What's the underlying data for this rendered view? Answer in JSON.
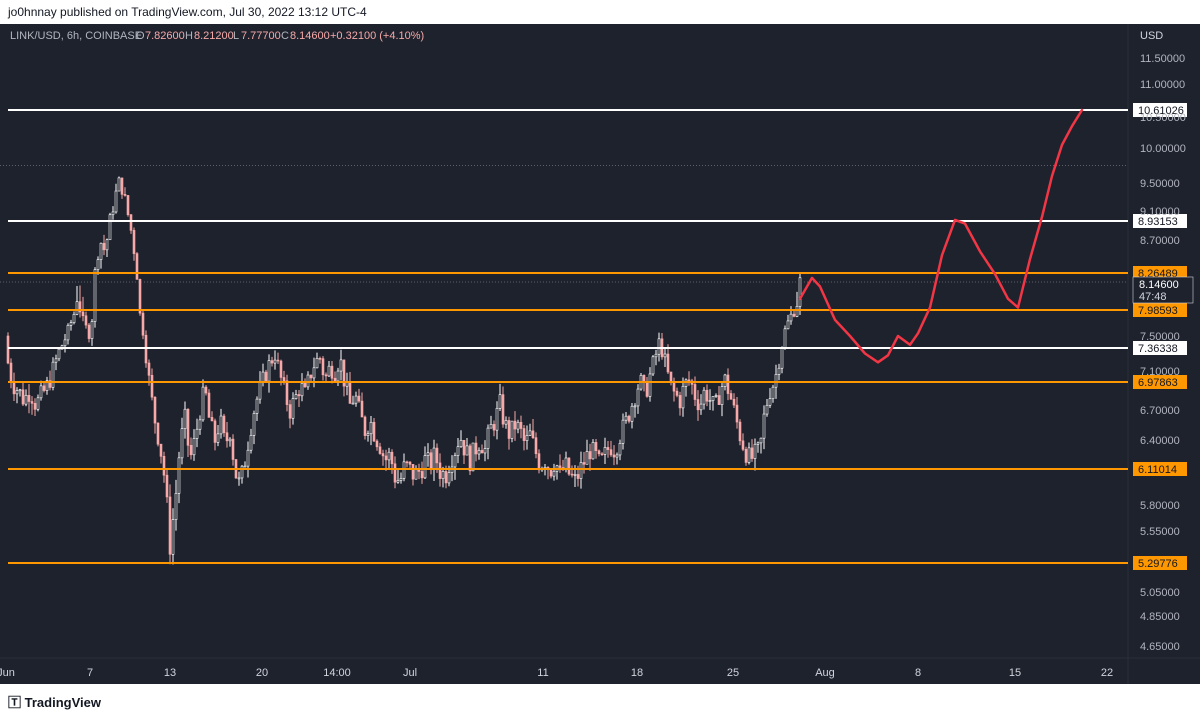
{
  "header": {
    "publisher": "jo0hnnay published on TradingView.com, Jul 30, 2022 13:12 UTC-4"
  },
  "footer": {
    "brand": "TradingView"
  },
  "chart_data": {
    "type": "candlestick",
    "legend": {
      "symbol": "LINK/USD, 6h, COINBASE",
      "o_label": "O",
      "o": "7.82600",
      "h_label": "H",
      "h": "8.21200",
      "l_label": "L",
      "l": "7.77700",
      "c_label": "C",
      "c": "8.14600",
      "change": "+0.32100 (+4.10%)"
    },
    "currency": "USD",
    "y_ticks": [
      "11.50000",
      "11.00000",
      "10.50000",
      "10.00000",
      "9.50000",
      "9.10000",
      "8.70000",
      "7.50000",
      "7.10000",
      "6.70000",
      "6.40000",
      "5.80000",
      "5.55000",
      "5.05000",
      "4.85000",
      "4.65000"
    ],
    "x_ticks": [
      "Jun",
      "7",
      "13",
      "20",
      "14:00",
      "Jul",
      "11",
      "18",
      "25",
      "Aug",
      "8",
      "15",
      "22"
    ],
    "levels": [
      {
        "value": "10.61026",
        "color": "#ffffff"
      },
      {
        "value": "8.93153",
        "color": "#ffffff"
      },
      {
        "value": "8.26489",
        "color": "#ff9800"
      },
      {
        "value": "7.98593",
        "color": "#ff9800"
      },
      {
        "value": "7.36338",
        "color": "#ffffff"
      },
      {
        "value": "6.97863",
        "color": "#ff9800"
      },
      {
        "value": "6.11014",
        "color": "#ff9800"
      },
      {
        "value": "5.29776",
        "color": "#ff9800"
      }
    ],
    "current_price": "8.14600",
    "countdown": "47:48",
    "up_color": "#ffffff",
    "down_color": "#f7a9a8",
    "projection_color": "#f23645",
    "close_points": [
      [
        0,
        7.5
      ],
      [
        6,
        7.3
      ],
      [
        12,
        6.98
      ],
      [
        18,
        6.9
      ],
      [
        24,
        6.8
      ],
      [
        30,
        6.9
      ],
      [
        36,
        6.75
      ],
      [
        42,
        6.85
      ],
      [
        48,
        6.95
      ],
      [
        54,
        7.15
      ],
      [
        60,
        7.35
      ],
      [
        66,
        7.5
      ],
      [
        72,
        7.8
      ],
      [
        78,
        8.15
      ],
      [
        84,
        7.7
      ],
      [
        90,
        7.55
      ],
      [
        96,
        8.4
      ],
      [
        100,
        8.7
      ],
      [
        105,
        8.55
      ],
      [
        110,
        8.95
      ],
      [
        115,
        9.3
      ],
      [
        120,
        9.55
      ],
      [
        125,
        9.25
      ],
      [
        130,
        8.9
      ],
      [
        135,
        8.5
      ],
      [
        140,
        7.9
      ],
      [
        145,
        7.4
      ],
      [
        150,
        6.9
      ],
      [
        155,
        6.6
      ],
      [
        160,
        6.35
      ],
      [
        165,
        6.0
      ],
      [
        170,
        5.45
      ],
      [
        175,
        5.8
      ],
      [
        180,
        6.35
      ],
      [
        185,
        6.6
      ],
      [
        190,
        6.2
      ],
      [
        195,
        6.4
      ],
      [
        200,
        6.7
      ],
      [
        205,
        6.9
      ],
      [
        210,
        6.55
      ],
      [
        215,
        6.4
      ],
      [
        220,
        6.6
      ],
      [
        225,
        6.35
      ],
      [
        230,
        6.5
      ],
      [
        235,
        6.1
      ],
      [
        240,
        5.95
      ],
      [
        245,
        6.2
      ],
      [
        250,
        6.5
      ],
      [
        255,
        6.75
      ],
      [
        260,
        6.9
      ],
      [
        265,
        7.05
      ],
      [
        270,
        7.2
      ],
      [
        275,
        7.3
      ],
      [
        280,
        7.05
      ],
      [
        285,
        6.85
      ],
      [
        290,
        6.7
      ],
      [
        295,
        6.8
      ],
      [
        300,
        6.95
      ],
      [
        305,
        6.85
      ],
      [
        310,
        7.05
      ],
      [
        315,
        7.2
      ],
      [
        320,
        7.25
      ],
      [
        325,
        7.0
      ],
      [
        330,
        7.15
      ],
      [
        335,
        7.1
      ],
      [
        340,
        7.25
      ],
      [
        345,
        6.95
      ],
      [
        350,
        6.75
      ],
      [
        355,
        6.85
      ],
      [
        360,
        6.65
      ],
      [
        365,
        6.5
      ],
      [
        370,
        6.6
      ],
      [
        375,
        6.45
      ],
      [
        380,
        6.35
      ],
      [
        385,
        6.2
      ],
      [
        390,
        6.25
      ],
      [
        395,
        6.05
      ],
      [
        400,
        6.0
      ],
      [
        405,
        6.15
      ],
      [
        410,
        6.1
      ],
      [
        415,
        6.05
      ],
      [
        420,
        6.1
      ],
      [
        425,
        6.2
      ],
      [
        430,
        6.15
      ],
      [
        435,
        6.25
      ],
      [
        440,
        6.1
      ],
      [
        445,
        6.05
      ],
      [
        450,
        6.2
      ],
      [
        455,
        6.3
      ],
      [
        460,
        6.45
      ],
      [
        465,
        6.3
      ],
      [
        470,
        6.2
      ],
      [
        475,
        6.3
      ],
      [
        480,
        6.4
      ],
      [
        485,
        6.3
      ],
      [
        490,
        6.5
      ],
      [
        495,
        6.6
      ],
      [
        500,
        6.75
      ],
      [
        505,
        6.55
      ],
      [
        510,
        6.45
      ],
      [
        515,
        6.55
      ],
      [
        520,
        6.5
      ],
      [
        525,
        6.35
      ],
      [
        530,
        6.45
      ],
      [
        535,
        6.3
      ],
      [
        540,
        6.15
      ],
      [
        545,
        6.2
      ],
      [
        550,
        6.1
      ],
      [
        555,
        6.2
      ],
      [
        560,
        6.05
      ],
      [
        565,
        6.15
      ],
      [
        570,
        6.05
      ],
      [
        575,
        6.0
      ],
      [
        580,
        6.1
      ],
      [
        585,
        6.2
      ],
      [
        590,
        6.3
      ],
      [
        595,
        6.25
      ],
      [
        600,
        6.15
      ],
      [
        605,
        6.25
      ],
      [
        610,
        6.35
      ],
      [
        615,
        6.3
      ],
      [
        620,
        6.45
      ],
      [
        625,
        6.55
      ],
      [
        630,
        6.7
      ],
      [
        635,
        6.85
      ],
      [
        640,
        7.0
      ],
      [
        645,
        6.85
      ],
      [
        650,
        7.05
      ],
      [
        655,
        7.25
      ],
      [
        660,
        7.45
      ],
      [
        665,
        7.2
      ],
      [
        670,
        6.95
      ],
      [
        675,
        6.85
      ],
      [
        680,
        6.8
      ],
      [
        685,
        6.95
      ],
      [
        690,
        7.0
      ],
      [
        695,
        6.85
      ],
      [
        700,
        6.75
      ],
      [
        705,
        6.9
      ],
      [
        710,
        6.8
      ],
      [
        715,
        6.7
      ],
      [
        720,
        6.9
      ],
      [
        725,
        7.0
      ],
      [
        730,
        6.85
      ],
      [
        735,
        6.65
      ],
      [
        740,
        6.45
      ],
      [
        745,
        6.3
      ],
      [
        750,
        6.2
      ],
      [
        755,
        6.25
      ],
      [
        760,
        6.3
      ],
      [
        765,
        6.7
      ],
      [
        770,
        6.9
      ],
      [
        775,
        7.0
      ],
      [
        780,
        7.3
      ],
      [
        785,
        7.6
      ],
      [
        790,
        7.85
      ],
      [
        795,
        8.0
      ],
      [
        800,
        8.15
      ]
    ],
    "projection": [
      [
        800,
        8.05
      ],
      [
        812,
        8.2
      ],
      [
        820,
        8.12
      ],
      [
        835,
        7.8
      ],
      [
        850,
        7.5
      ],
      [
        865,
        7.3
      ],
      [
        878,
        7.2
      ],
      [
        888,
        7.28
      ],
      [
        898,
        7.5
      ],
      [
        910,
        7.4
      ],
      [
        918,
        7.55
      ],
      [
        930,
        8.0
      ],
      [
        942,
        8.5
      ],
      [
        955,
        8.95
      ],
      [
        965,
        8.9
      ],
      [
        980,
        8.55
      ],
      [
        995,
        8.25
      ],
      [
        1008,
        8.05
      ],
      [
        1018,
        8.0
      ],
      [
        1030,
        8.45
      ],
      [
        1042,
        9.0
      ],
      [
        1052,
        9.6
      ],
      [
        1062,
        10.05
      ],
      [
        1072,
        10.35
      ],
      [
        1082,
        10.61
      ]
    ]
  }
}
